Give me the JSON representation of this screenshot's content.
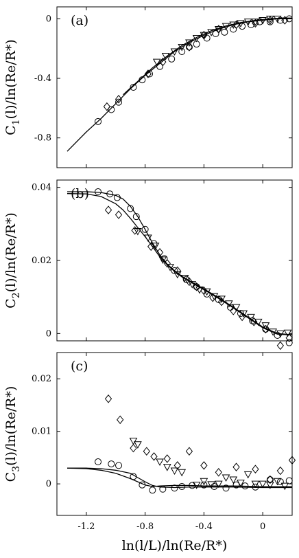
{
  "chart_data": [
    {
      "type": "scatter",
      "panel": "(a)",
      "ylabel_main": "C",
      "ylabel_sub": "1",
      "ylabel_rest": "(l)/ln(Re/R*)",
      "xlim": [
        -1.4,
        0.2
      ],
      "ylim": [
        -1.0,
        0.08
      ],
      "xticks": [
        -1.2,
        -0.8,
        -0.4,
        0
      ],
      "yticks": [
        0,
        -0.4,
        -0.8
      ],
      "ytick_labels": [
        "0",
        "-0.4",
        "-0.8"
      ],
      "curves": [
        {
          "x": [
            -1.33,
            -1.2,
            -1.1,
            -1.0,
            -0.9,
            -0.8,
            -0.7,
            -0.6,
            -0.5,
            -0.4,
            -0.3,
            -0.2,
            -0.1,
            0,
            0.1,
            0.2
          ],
          "y": [
            -0.89,
            -0.76,
            -0.67,
            -0.57,
            -0.47,
            -0.38,
            -0.3,
            -0.22,
            -0.16,
            -0.11,
            -0.07,
            -0.04,
            -0.02,
            -0.01,
            0.0,
            0.0
          ]
        },
        {
          "x": [
            -0.95,
            -0.85,
            -0.75,
            -0.65,
            -0.55,
            -0.45,
            -0.35,
            -0.25,
            -0.15,
            -0.05,
            0.05,
            0.15,
            0.2
          ],
          "y": [
            -0.51,
            -0.42,
            -0.33,
            -0.25,
            -0.18,
            -0.125,
            -0.08,
            -0.048,
            -0.025,
            -0.01,
            0.0,
            0.005,
            0.005
          ]
        }
      ],
      "series": [
        {
          "marker": "circle",
          "x": [
            -1.12,
            -1.03,
            -0.98,
            -0.88,
            -0.82,
            -0.77,
            -0.7,
            -0.62,
            -0.55,
            -0.5,
            -0.45,
            -0.38,
            -0.32,
            -0.26,
            -0.2,
            -0.14,
            -0.08,
            -0.02,
            0.05,
            0.12,
            0.18
          ],
          "y": [
            -0.69,
            -0.61,
            -0.56,
            -0.46,
            -0.41,
            -0.37,
            -0.32,
            -0.27,
            -0.22,
            -0.19,
            -0.17,
            -0.13,
            -0.1,
            -0.09,
            -0.07,
            -0.05,
            -0.04,
            -0.02,
            -0.02,
            -0.01,
            0.0
          ]
        },
        {
          "marker": "diamond",
          "x": [
            -1.06,
            -0.98,
            -0.78,
            -0.68,
            -0.5,
            -0.4,
            -0.3,
            -0.18,
            -0.05,
            0.05,
            0.15
          ],
          "y": [
            -0.59,
            -0.54,
            -0.37,
            -0.29,
            -0.19,
            -0.11,
            -0.07,
            -0.04,
            -0.03,
            -0.01,
            -0.01
          ]
        },
        {
          "marker": "triangle-down",
          "x": [
            -0.72,
            -0.66,
            -0.6,
            -0.55,
            -0.5,
            -0.45,
            -0.4,
            -0.35,
            -0.3,
            -0.25,
            -0.2,
            -0.15,
            -0.1,
            -0.05,
            0.0,
            0.05,
            0.1
          ],
          "y": [
            -0.29,
            -0.25,
            -0.22,
            -0.19,
            -0.16,
            -0.13,
            -0.11,
            -0.09,
            -0.07,
            -0.05,
            -0.04,
            -0.03,
            -0.02,
            -0.02,
            -0.01,
            0.0,
            0.0
          ]
        }
      ]
    },
    {
      "type": "scatter",
      "panel": "(b)",
      "ylabel_main": "C",
      "ylabel_sub": "2",
      "ylabel_rest": "(l)/ln(Re/R*)",
      "xlim": [
        -1.4,
        0.2
      ],
      "ylim": [
        -0.002,
        0.042
      ],
      "xticks": [
        -1.2,
        -0.8,
        -0.4,
        0
      ],
      "yticks": [
        0.04,
        0.02,
        0
      ],
      "ytick_labels": [
        "0.04",
        "0.02",
        "0"
      ],
      "curves": [
        {
          "x": [
            -1.33,
            -1.2,
            -1.1,
            -1.0,
            -0.95,
            -0.9,
            -0.85,
            -0.8,
            -0.75,
            -0.7,
            -0.65,
            -0.6,
            -0.55,
            -0.5,
            -0.4,
            -0.3,
            -0.2,
            -0.1,
            0,
            0.1,
            0.2
          ],
          "y": [
            0.0388,
            0.0388,
            0.0386,
            0.0378,
            0.0368,
            0.0348,
            0.032,
            0.0285,
            0.0248,
            0.0215,
            0.019,
            0.0172,
            0.0157,
            0.0145,
            0.0122,
            0.0098,
            0.0072,
            0.0045,
            0.0018,
            0.0,
            -0.0003
          ]
        },
        {
          "x": [
            -1.33,
            -1.2,
            -1.1,
            -1.0,
            -0.95,
            -0.9,
            -0.85,
            -0.8,
            -0.75,
            -0.7,
            -0.65,
            -0.6,
            -0.55,
            -0.5,
            -0.4,
            -0.3,
            -0.2,
            -0.1,
            0,
            0.1,
            0.2
          ],
          "y": [
            0.0383,
            0.0382,
            0.0375,
            0.0355,
            0.0338,
            0.0315,
            0.029,
            0.0265,
            0.0238,
            0.021,
            0.0188,
            0.017,
            0.0155,
            0.0143,
            0.012,
            0.0096,
            0.007,
            0.0043,
            0.0016,
            -0.0002,
            -0.0004
          ]
        }
      ],
      "series": [
        {
          "marker": "circle",
          "x": [
            -1.12,
            -1.04,
            -0.99,
            -0.9,
            -0.86,
            -0.8,
            -0.74,
            -0.67,
            -0.6,
            -0.52,
            -0.45,
            -0.38,
            -0.3,
            -0.22,
            -0.15,
            -0.07,
            0.02,
            0.1,
            0.18
          ],
          "y": [
            0.0388,
            0.0382,
            0.0372,
            0.0342,
            0.032,
            0.0285,
            0.0246,
            0.0205,
            0.0172,
            0.0148,
            0.0128,
            0.0108,
            0.0093,
            0.0072,
            0.0055,
            0.0035,
            0.0012,
            -0.0005,
            -0.0025
          ]
        },
        {
          "marker": "diamond",
          "x": [
            -1.05,
            -0.98,
            -0.87,
            -0.76,
            -0.7,
            -0.65,
            -0.58,
            -0.5,
            -0.45,
            -0.4,
            -0.34,
            -0.28,
            -0.2,
            -0.14,
            -0.06,
            0.02,
            0.12,
            0.18
          ],
          "y": [
            0.0338,
            0.0325,
            0.0282,
            0.0238,
            0.0222,
            0.0192,
            0.0172,
            0.0142,
            0.0128,
            0.0117,
            0.0098,
            0.0087,
            0.0062,
            0.0046,
            0.0032,
            0.0012,
            -0.0033,
            -0.0012
          ]
        },
        {
          "marker": "triangle-down",
          "x": [
            -0.85,
            -0.78,
            -0.73,
            -0.68,
            -0.63,
            -0.58,
            -0.53,
            -0.48,
            -0.43,
            -0.38,
            -0.33,
            -0.28,
            -0.23,
            -0.18,
            -0.13,
            -0.08,
            -0.03,
            0.02,
            0.07,
            0.12,
            0.17
          ],
          "y": [
            0.028,
            0.0262,
            0.024,
            0.0202,
            0.0182,
            0.0162,
            0.0152,
            0.0135,
            0.012,
            0.0115,
            0.0102,
            0.0095,
            0.0082,
            0.0072,
            0.0055,
            0.0045,
            0.0032,
            0.0022,
            0.0005,
            0.0,
            0.0002
          ]
        }
      ]
    },
    {
      "type": "scatter",
      "panel": "(c)",
      "ylabel_main": "C",
      "ylabel_sub": "3",
      "ylabel_rest": "(l)/ln(Re/R*)",
      "xlabel": "ln(l/L)/ln(Re/R*)",
      "xlim": [
        -1.4,
        0.2
      ],
      "ylim": [
        -0.006,
        0.025
      ],
      "xticks": [
        -1.2,
        -0.8,
        -0.4,
        0
      ],
      "xtick_labels": [
        "-1.2",
        "-0.8",
        "-0.4",
        "0"
      ],
      "yticks": [
        0.02,
        0.01,
        0
      ],
      "ytick_labels": [
        "0.02",
        "0.01",
        "0"
      ],
      "curves": [
        {
          "x": [
            -1.33,
            -1.2,
            -1.1,
            -1.0,
            -0.9,
            -0.85,
            -0.8,
            -0.75,
            -0.7,
            -0.6,
            -0.5,
            -0.4,
            -0.2,
            0,
            0.2
          ],
          "y": [
            0.003,
            0.003,
            0.0029,
            0.0026,
            0.002,
            0.0012,
            0.0004,
            -0.0003,
            -0.0006,
            -0.0007,
            -0.0006,
            -0.0006,
            -0.0006,
            -0.0007,
            -0.0007
          ]
        },
        {
          "x": [
            -1.33,
            -1.2,
            -1.1,
            -1.0,
            -0.9,
            -0.85,
            -0.8,
            -0.75,
            -0.7,
            -0.6,
            -0.5,
            -0.4,
            -0.2,
            0,
            0.2
          ],
          "y": [
            0.003,
            0.0029,
            0.0026,
            0.002,
            0.001,
            0.0004,
            -0.0002,
            -0.0005,
            -0.0004,
            -0.0003,
            -0.0003,
            -0.0004,
            -0.0004,
            -0.0005,
            -0.0005
          ]
        }
      ],
      "series": [
        {
          "marker": "circle",
          "x": [
            -1.12,
            -1.03,
            -0.98,
            -0.88,
            -0.82,
            -0.75,
            -0.68,
            -0.6,
            -0.55,
            -0.48,
            -0.4,
            -0.33,
            -0.25,
            -0.18,
            -0.12,
            -0.05,
            0.05,
            0.12,
            0.18
          ],
          "y": [
            0.0042,
            0.0038,
            0.0035,
            0.0014,
            -0.0002,
            -0.0012,
            -0.001,
            -0.0008,
            -0.0005,
            -0.0003,
            -0.0002,
            -0.0005,
            -0.0008,
            -0.0002,
            -0.0004,
            -0.0006,
            0.0008,
            0.0004,
            0.0006
          ]
        },
        {
          "marker": "diamond",
          "x": [
            -1.05,
            -0.97,
            -0.88,
            -0.79,
            -0.74,
            -0.65,
            -0.58,
            -0.5,
            -0.4,
            -0.3,
            -0.18,
            -0.05,
            0.05,
            0.12,
            0.2
          ],
          "y": [
            0.0162,
            0.0122,
            0.0068,
            0.0062,
            0.0052,
            0.0048,
            0.0035,
            0.0062,
            0.0035,
            0.0022,
            0.0032,
            0.0028,
            0.0008,
            0.0025,
            0.0045
          ]
        },
        {
          "marker": "triangle-down",
          "x": [
            -0.88,
            -0.85,
            -0.7,
            -0.65,
            -0.6,
            -0.55,
            -0.45,
            -0.4,
            -0.35,
            -0.3,
            -0.25,
            -0.2,
            -0.15,
            -0.1,
            -0.05,
            0.0,
            0.05,
            0.1,
            0.15
          ],
          "y": [
            0.0082,
            0.0075,
            0.0042,
            0.0032,
            0.0025,
            0.0022,
            -0.0002,
            0.0005,
            -0.0001,
            0.0,
            0.0012,
            0.0008,
            0.0002,
            0.0018,
            0.0,
            0.0,
            -0.0002,
            0.0005,
            -0.0004
          ]
        }
      ]
    }
  ]
}
